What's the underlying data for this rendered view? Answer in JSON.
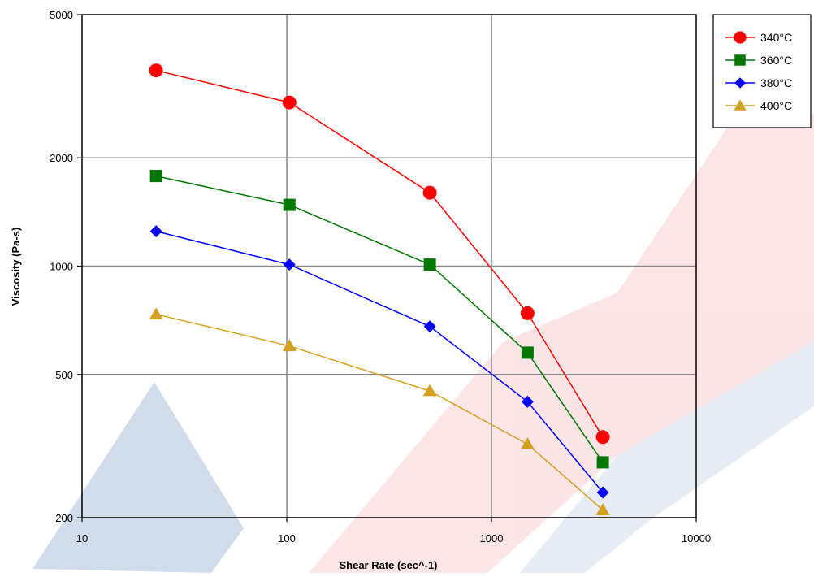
{
  "chart_data": {
    "type": "line",
    "title": "",
    "xlabel": "Shear Rate (sec^-1)",
    "ylabel": "Viscosity (Pa-s)",
    "xscale": "log",
    "yscale": "log",
    "xlim": [
      10,
      10000
    ],
    "ylim": [
      200,
      5000
    ],
    "x_ticks": [
      10,
      100,
      1000,
      10000
    ],
    "x_tick_labels": [
      "10",
      "100",
      "1000",
      "10000"
    ],
    "y_ticks": [
      200,
      500,
      1000,
      2000,
      5000
    ],
    "y_tick_labels": [
      "200",
      "500",
      "1000",
      "2000",
      "5000"
    ],
    "grid": true,
    "legend_position": "top-right, outside plot area",
    "series": [
      {
        "name": "340°C",
        "color": "#ff0000",
        "marker": "circle",
        "points": [
          [
            23,
            3500
          ],
          [
            103,
            2850
          ],
          [
            500,
            1600
          ],
          [
            1500,
            740
          ],
          [
            3500,
            335
          ]
        ]
      },
      {
        "name": "360°C",
        "color": "#007700",
        "marker": "square",
        "points": [
          [
            23,
            1780
          ],
          [
            103,
            1480
          ],
          [
            500,
            1010
          ],
          [
            1500,
            575
          ],
          [
            3500,
            285
          ]
        ]
      },
      {
        "name": "380°C",
        "color": "#0000ff",
        "marker": "diamond",
        "points": [
          [
            23,
            1250
          ],
          [
            103,
            1010
          ],
          [
            500,
            680
          ],
          [
            1500,
            420
          ],
          [
            3500,
            235
          ]
        ]
      },
      {
        "name": "400°C",
        "color": "#d4a020",
        "marker": "triangle",
        "points": [
          [
            23,
            735
          ],
          [
            103,
            600
          ],
          [
            500,
            450
          ],
          [
            1500,
            320
          ],
          [
            3500,
            210
          ]
        ]
      }
    ]
  }
}
